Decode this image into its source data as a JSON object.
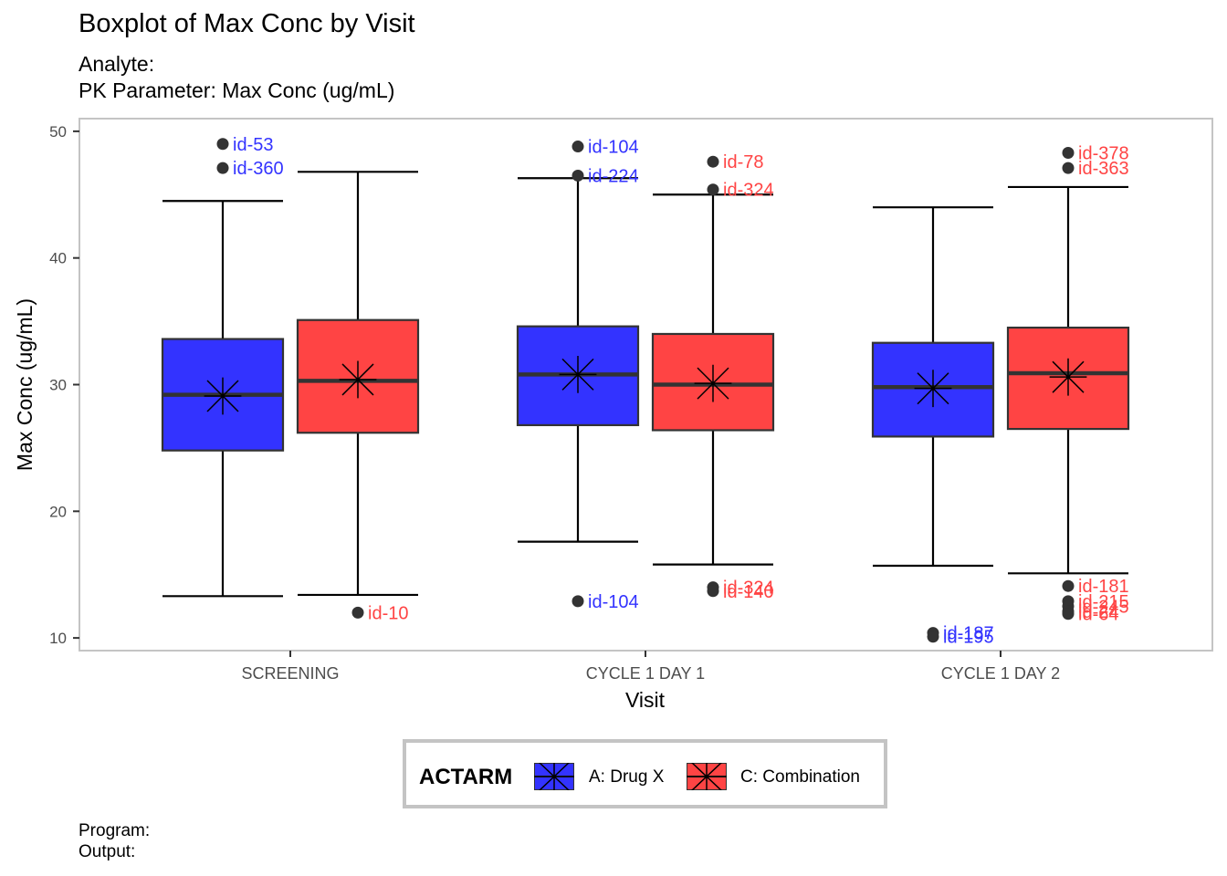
{
  "title": "Boxplot of Max Conc by Visit",
  "subtitle_analyte": "Analyte:",
  "subtitle_param": "PK Parameter: Max Conc (ug/mL)",
  "caption_program": "Program:",
  "caption_output": "Output:",
  "legend": {
    "title": "ACTARM",
    "items": [
      {
        "label": "A: Drug X",
        "color": "#3333ff"
      },
      {
        "label": "C: Combination",
        "color": "#ff4444"
      }
    ]
  },
  "chart_data": {
    "type": "boxplot",
    "xlabel": "Visit",
    "ylabel": "Max Conc (ug/mL)",
    "ylim": [
      9,
      51
    ],
    "yticks": [
      10,
      20,
      30,
      40,
      50
    ],
    "categories": [
      "SCREENING",
      "CYCLE 1 DAY 1",
      "CYCLE 1 DAY 2"
    ],
    "grid": false,
    "legend_position": "bottom",
    "series": [
      {
        "name": "A: Drug X",
        "color": "#3333ff",
        "boxes": [
          {
            "category": "SCREENING",
            "q1": 24.8,
            "median": 29.2,
            "q3": 33.6,
            "lower": 13.3,
            "upper": 44.5,
            "mean": 29.1,
            "outliers": [
              {
                "y": 49.0,
                "label": "id-53"
              },
              {
                "y": 47.1,
                "label": "id-360"
              }
            ]
          },
          {
            "category": "CYCLE 1 DAY 1",
            "q1": 26.8,
            "median": 30.8,
            "q3": 34.6,
            "lower": 17.6,
            "upper": 46.3,
            "mean": 30.8,
            "outliers": [
              {
                "y": 48.8,
                "label": "id-104"
              },
              {
                "y": 46.5,
                "label": "id-224"
              },
              {
                "y": 12.9,
                "label": "id-104"
              }
            ]
          },
          {
            "category": "CYCLE 1 DAY 2",
            "q1": 25.9,
            "median": 29.8,
            "q3": 33.3,
            "lower": 15.7,
            "upper": 44.0,
            "mean": 29.7,
            "outliers": [
              {
                "y": 10.4,
                "label": "id-187"
              },
              {
                "y": 10.1,
                "label": "id-195"
              }
            ]
          }
        ]
      },
      {
        "name": "C: Combination",
        "color": "#ff4444",
        "boxes": [
          {
            "category": "SCREENING",
            "q1": 26.2,
            "median": 30.3,
            "q3": 35.1,
            "lower": 13.4,
            "upper": 46.8,
            "mean": 30.4,
            "outliers": [
              {
                "y": 12.0,
                "label": "id-10"
              }
            ]
          },
          {
            "category": "CYCLE 1 DAY 1",
            "q1": 26.4,
            "median": 30.0,
            "q3": 34.0,
            "lower": 15.8,
            "upper": 45.0,
            "mean": 30.1,
            "outliers": [
              {
                "y": 47.6,
                "label": "id-78"
              },
              {
                "y": 45.4,
                "label": "id-324"
              },
              {
                "y": 14.0,
                "label": "id-324"
              },
              {
                "y": 13.7,
                "label": "id-140"
              }
            ]
          },
          {
            "category": "CYCLE 1 DAY 2",
            "q1": 26.5,
            "median": 30.9,
            "q3": 34.5,
            "lower": 15.1,
            "upper": 45.6,
            "mean": 30.6,
            "outliers": [
              {
                "y": 48.3,
                "label": "id-378"
              },
              {
                "y": 47.1,
                "label": "id-363"
              },
              {
                "y": 14.1,
                "label": "id-181"
              },
              {
                "y": 12.9,
                "label": "id-215"
              },
              {
                "y": 12.5,
                "label": "id-245"
              },
              {
                "y": 12.1,
                "label": "id-24"
              },
              {
                "y": 11.9,
                "label": "id-64"
              }
            ]
          }
        ]
      }
    ]
  }
}
